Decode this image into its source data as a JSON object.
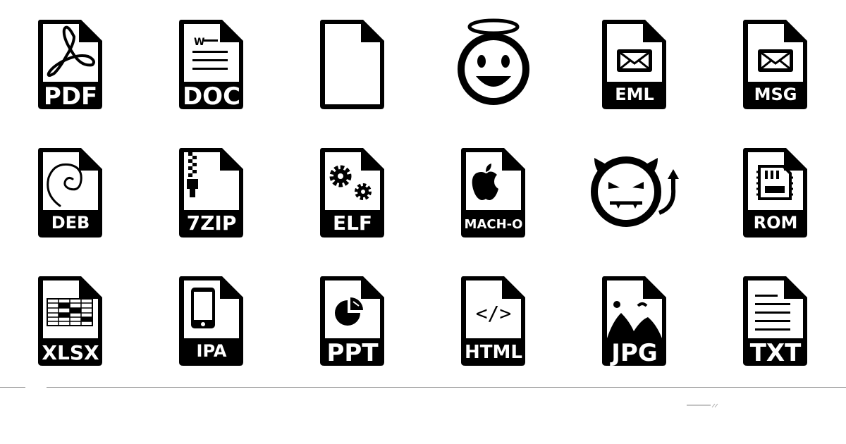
{
  "colors": {
    "ink": "#000000",
    "paper": "#ffffff",
    "divider": "#8a8a8a"
  },
  "icons": [
    {
      "name": "pdf-file-icon",
      "label": "PDF"
    },
    {
      "name": "doc-file-icon",
      "label": "DOC"
    },
    {
      "name": "blank-file-icon",
      "label": ""
    },
    {
      "name": "angel-face-icon",
      "label": ""
    },
    {
      "name": "eml-file-icon",
      "label": "EML"
    },
    {
      "name": "msg-file-icon",
      "label": "MSG"
    },
    {
      "name": "deb-file-icon",
      "label": "DEB"
    },
    {
      "name": "7zip-file-icon",
      "label": "7ZIP"
    },
    {
      "name": "elf-file-icon",
      "label": "ELF"
    },
    {
      "name": "mach-o-file-icon",
      "label": "MACH-O"
    },
    {
      "name": "devil-face-icon",
      "label": ""
    },
    {
      "name": "rom-file-icon",
      "label": "ROM"
    },
    {
      "name": "xlsx-file-icon",
      "label": "XLSX"
    },
    {
      "name": "ipa-file-icon",
      "label": "IPA"
    },
    {
      "name": "ppt-file-icon",
      "label": "PPT"
    },
    {
      "name": "html-file-icon",
      "label": "HTML"
    },
    {
      "name": "jpg-file-icon",
      "label": "JPG"
    },
    {
      "name": "txt-file-icon",
      "label": "TXT"
    }
  ],
  "doc_glyph": "W",
  "code_glyph": "</>"
}
